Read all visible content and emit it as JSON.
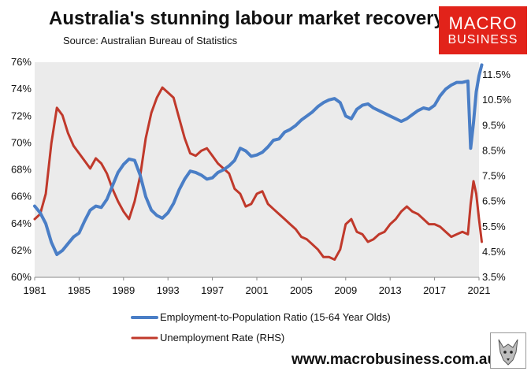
{
  "header": {
    "title": "Australia's stunning labour market recovery",
    "subtitle": "Source: Australian Bureau of Statistics"
  },
  "logo": {
    "line1": "MACRO",
    "line2": "BUSINESS",
    "color": "#e2231a"
  },
  "footer": {
    "website": "www.macrobusiness.com.au",
    "emblem_icon": "wolf-head-icon"
  },
  "colors": {
    "plot_bg": "#ebebeb",
    "epop": "#4a7ec6",
    "unemp": "#c0392b"
  },
  "chart_data": {
    "type": "line",
    "title": "Australia's stunning labour market recovery",
    "xlabel": "",
    "ylabel": "",
    "x_range": [
      1981,
      2021
    ],
    "x_ticks": [
      1981,
      1985,
      1989,
      1993,
      1997,
      2001,
      2005,
      2009,
      2013,
      2017,
      2021
    ],
    "y_left": {
      "range": [
        60,
        76
      ],
      "ticks": [
        60,
        62,
        64,
        66,
        68,
        70,
        72,
        74,
        76
      ],
      "unit": "%"
    },
    "y_right": {
      "range": [
        3.5,
        12.0
      ],
      "ticks": [
        3.5,
        4.5,
        5.5,
        6.5,
        7.5,
        8.5,
        9.5,
        10.5,
        11.5
      ],
      "unit": "%"
    },
    "legend_position": "bottom",
    "series": [
      {
        "name": "Employment-to-Population Ratio (15-64 Year Olds)",
        "axis": "left",
        "color": "#4a7ec6",
        "points": [
          [
            1981.0,
            65.3
          ],
          [
            1981.5,
            64.8
          ],
          [
            1982.0,
            64.0
          ],
          [
            1982.5,
            62.6
          ],
          [
            1983.0,
            61.7
          ],
          [
            1983.5,
            62.0
          ],
          [
            1984.0,
            62.5
          ],
          [
            1984.5,
            63.0
          ],
          [
            1985.0,
            63.3
          ],
          [
            1985.5,
            64.2
          ],
          [
            1986.0,
            65.0
          ],
          [
            1986.5,
            65.3
          ],
          [
            1987.0,
            65.2
          ],
          [
            1987.5,
            65.8
          ],
          [
            1988.0,
            66.8
          ],
          [
            1988.5,
            67.8
          ],
          [
            1989.0,
            68.4
          ],
          [
            1989.5,
            68.8
          ],
          [
            1990.0,
            68.7
          ],
          [
            1990.5,
            67.6
          ],
          [
            1991.0,
            66.0
          ],
          [
            1991.5,
            65.0
          ],
          [
            1992.0,
            64.6
          ],
          [
            1992.5,
            64.4
          ],
          [
            1993.0,
            64.8
          ],
          [
            1993.5,
            65.5
          ],
          [
            1994.0,
            66.5
          ],
          [
            1994.5,
            67.3
          ],
          [
            1995.0,
            67.9
          ],
          [
            1995.5,
            67.8
          ],
          [
            1996.0,
            67.6
          ],
          [
            1996.5,
            67.3
          ],
          [
            1997.0,
            67.4
          ],
          [
            1997.5,
            67.8
          ],
          [
            1998.0,
            68.0
          ],
          [
            1998.5,
            68.3
          ],
          [
            1999.0,
            68.7
          ],
          [
            1999.5,
            69.6
          ],
          [
            2000.0,
            69.4
          ],
          [
            2000.5,
            69.0
          ],
          [
            2001.0,
            69.1
          ],
          [
            2001.5,
            69.3
          ],
          [
            2002.0,
            69.7
          ],
          [
            2002.5,
            70.2
          ],
          [
            2003.0,
            70.3
          ],
          [
            2003.5,
            70.8
          ],
          [
            2004.0,
            71.0
          ],
          [
            2004.5,
            71.3
          ],
          [
            2005.0,
            71.7
          ],
          [
            2005.5,
            72.0
          ],
          [
            2006.0,
            72.3
          ],
          [
            2006.5,
            72.7
          ],
          [
            2007.0,
            73.0
          ],
          [
            2007.5,
            73.2
          ],
          [
            2008.0,
            73.3
          ],
          [
            2008.5,
            73.0
          ],
          [
            2009.0,
            72.0
          ],
          [
            2009.5,
            71.8
          ],
          [
            2010.0,
            72.5
          ],
          [
            2010.5,
            72.8
          ],
          [
            2011.0,
            72.9
          ],
          [
            2011.5,
            72.6
          ],
          [
            2012.0,
            72.4
          ],
          [
            2012.5,
            72.2
          ],
          [
            2013.0,
            72.0
          ],
          [
            2013.5,
            71.8
          ],
          [
            2014.0,
            71.6
          ],
          [
            2014.5,
            71.8
          ],
          [
            2015.0,
            72.1
          ],
          [
            2015.5,
            72.4
          ],
          [
            2016.0,
            72.6
          ],
          [
            2016.5,
            72.5
          ],
          [
            2017.0,
            72.8
          ],
          [
            2017.5,
            73.5
          ],
          [
            2018.0,
            74.0
          ],
          [
            2018.5,
            74.3
          ],
          [
            2019.0,
            74.5
          ],
          [
            2019.5,
            74.5
          ],
          [
            2020.0,
            74.6
          ],
          [
            2020.25,
            69.6
          ],
          [
            2020.5,
            71.5
          ],
          [
            2020.75,
            73.8
          ],
          [
            2021.0,
            75.0
          ],
          [
            2021.25,
            75.8
          ]
        ]
      },
      {
        "name": "Unemployment Rate (RHS)",
        "axis": "right",
        "color": "#c0392b",
        "points": [
          [
            1981.0,
            5.8
          ],
          [
            1981.5,
            6.0
          ],
          [
            1982.0,
            6.8
          ],
          [
            1982.5,
            8.8
          ],
          [
            1983.0,
            10.2
          ],
          [
            1983.5,
            9.9
          ],
          [
            1984.0,
            9.2
          ],
          [
            1984.5,
            8.7
          ],
          [
            1985.0,
            8.4
          ],
          [
            1985.5,
            8.1
          ],
          [
            1986.0,
            7.8
          ],
          [
            1986.5,
            8.2
          ],
          [
            1987.0,
            8.0
          ],
          [
            1987.5,
            7.6
          ],
          [
            1988.0,
            7.0
          ],
          [
            1988.5,
            6.5
          ],
          [
            1989.0,
            6.1
          ],
          [
            1989.5,
            5.8
          ],
          [
            1990.0,
            6.5
          ],
          [
            1990.5,
            7.5
          ],
          [
            1991.0,
            9.0
          ],
          [
            1991.5,
            10.0
          ],
          [
            1992.0,
            10.6
          ],
          [
            1992.5,
            11.0
          ],
          [
            1993.0,
            10.8
          ],
          [
            1993.5,
            10.6
          ],
          [
            1994.0,
            9.8
          ],
          [
            1994.5,
            9.0
          ],
          [
            1995.0,
            8.4
          ],
          [
            1995.5,
            8.3
          ],
          [
            1996.0,
            8.5
          ],
          [
            1996.5,
            8.6
          ],
          [
            1997.0,
            8.3
          ],
          [
            1997.5,
            8.0
          ],
          [
            1998.0,
            7.8
          ],
          [
            1998.5,
            7.6
          ],
          [
            1999.0,
            7.0
          ],
          [
            1999.5,
            6.8
          ],
          [
            2000.0,
            6.3
          ],
          [
            2000.5,
            6.4
          ],
          [
            2001.0,
            6.8
          ],
          [
            2001.5,
            6.9
          ],
          [
            2002.0,
            6.4
          ],
          [
            2002.5,
            6.2
          ],
          [
            2003.0,
            6.0
          ],
          [
            2003.5,
            5.8
          ],
          [
            2004.0,
            5.6
          ],
          [
            2004.5,
            5.4
          ],
          [
            2005.0,
            5.1
          ],
          [
            2005.5,
            5.0
          ],
          [
            2006.0,
            4.8
          ],
          [
            2006.5,
            4.6
          ],
          [
            2007.0,
            4.3
          ],
          [
            2007.5,
            4.3
          ],
          [
            2008.0,
            4.2
          ],
          [
            2008.5,
            4.6
          ],
          [
            2009.0,
            5.6
          ],
          [
            2009.5,
            5.8
          ],
          [
            2010.0,
            5.3
          ],
          [
            2010.5,
            5.2
          ],
          [
            2011.0,
            4.9
          ],
          [
            2011.5,
            5.0
          ],
          [
            2012.0,
            5.2
          ],
          [
            2012.5,
            5.3
          ],
          [
            2013.0,
            5.6
          ],
          [
            2013.5,
            5.8
          ],
          [
            2014.0,
            6.1
          ],
          [
            2014.5,
            6.3
          ],
          [
            2015.0,
            6.1
          ],
          [
            2015.5,
            6.0
          ],
          [
            2016.0,
            5.8
          ],
          [
            2016.5,
            5.6
          ],
          [
            2017.0,
            5.6
          ],
          [
            2017.5,
            5.5
          ],
          [
            2018.0,
            5.3
          ],
          [
            2018.5,
            5.1
          ],
          [
            2019.0,
            5.2
          ],
          [
            2019.5,
            5.3
          ],
          [
            2020.0,
            5.2
          ],
          [
            2020.25,
            6.4
          ],
          [
            2020.5,
            7.3
          ],
          [
            2020.75,
            6.8
          ],
          [
            2021.0,
            5.8
          ],
          [
            2021.25,
            4.9
          ]
        ]
      }
    ]
  }
}
